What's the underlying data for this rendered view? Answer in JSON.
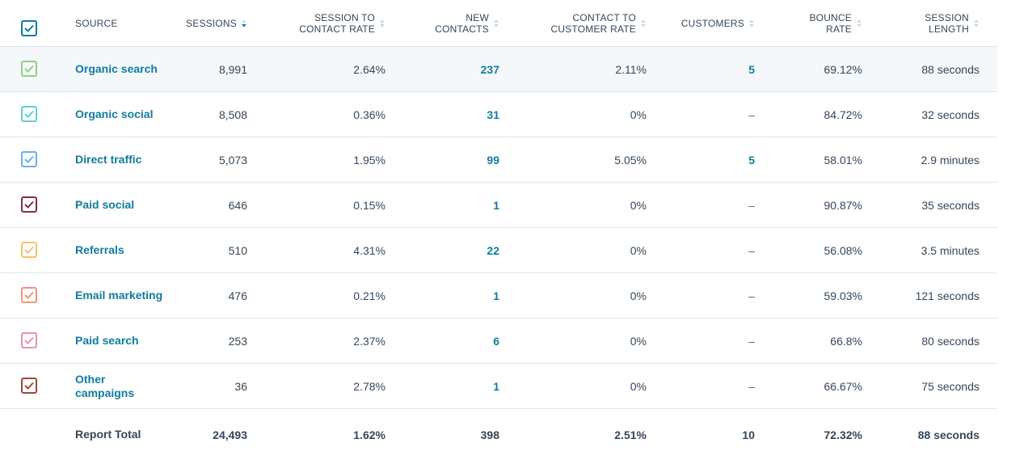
{
  "headers": {
    "source": "SOURCE",
    "sessions_l1": "SESSIONS",
    "sc_rate_l1": "SESSION TO",
    "sc_rate_l2": "CONTACT RATE",
    "new_contacts_l1": "NEW",
    "new_contacts_l2": "CONTACTS",
    "cc_rate_l1": "CONTACT TO",
    "cc_rate_l2": "CUSTOMER RATE",
    "customers_l1": "CUSTOMERS",
    "bounce_l1": "BOUNCE",
    "bounce_l2": "RATE",
    "length_l1": "SESSION",
    "length_l2": "LENGTH"
  },
  "header_checkbox_color": "#0f7c9e",
  "rows": [
    {
      "source": "Organic search",
      "sessions": "8,991",
      "sc_rate": "2.64%",
      "new_contacts": "237",
      "cc_rate": "2.11%",
      "customers": "5",
      "bounce": "69.12%",
      "length": "88 seconds",
      "color": "#8fce86"
    },
    {
      "source": "Organic social",
      "sessions": "8,508",
      "sc_rate": "0.36%",
      "new_contacts": "31",
      "cc_rate": "0%",
      "customers": "–",
      "bounce": "84.72%",
      "length": "32 seconds",
      "color": "#5ed0d6"
    },
    {
      "source": "Direct traffic",
      "sessions": "5,073",
      "sc_rate": "1.95%",
      "new_contacts": "99",
      "cc_rate": "5.05%",
      "customers": "5",
      "bounce": "58.01%",
      "length": "2.9 minutes",
      "color": "#6aaef0"
    },
    {
      "source": "Paid social",
      "sessions": "646",
      "sc_rate": "0.15%",
      "new_contacts": "1",
      "cc_rate": "0%",
      "customers": "–",
      "bounce": "90.87%",
      "length": "35 seconds",
      "color": "#7d2f4f"
    },
    {
      "source": "Referrals",
      "sessions": "510",
      "sc_rate": "4.31%",
      "new_contacts": "22",
      "cc_rate": "0%",
      "customers": "–",
      "bounce": "56.08%",
      "length": "3.5 minutes",
      "color": "#f5c26b"
    },
    {
      "source": "Email marketing",
      "sessions": "476",
      "sc_rate": "0.21%",
      "new_contacts": "1",
      "cc_rate": "0%",
      "customers": "–",
      "bounce": "59.03%",
      "length": "121 seconds",
      "color": "#f5937a"
    },
    {
      "source": "Paid search",
      "sessions": "253",
      "sc_rate": "2.37%",
      "new_contacts": "6",
      "cc_rate": "0%",
      "customers": "–",
      "bounce": "66.8%",
      "length": "80 seconds",
      "color": "#ea90b1"
    },
    {
      "source": "Other campaigns",
      "sessions": "36",
      "sc_rate": "2.78%",
      "new_contacts": "1",
      "cc_rate": "0%",
      "customers": "–",
      "bounce": "66.67%",
      "length": "75 seconds",
      "color": "#9b4a3c"
    }
  ],
  "total": {
    "label": "Report Total",
    "sessions": "24,493",
    "sc_rate": "1.62%",
    "new_contacts": "398",
    "cc_rate": "2.51%",
    "customers": "10",
    "bounce": "72.32%",
    "length": "88 seconds"
  }
}
